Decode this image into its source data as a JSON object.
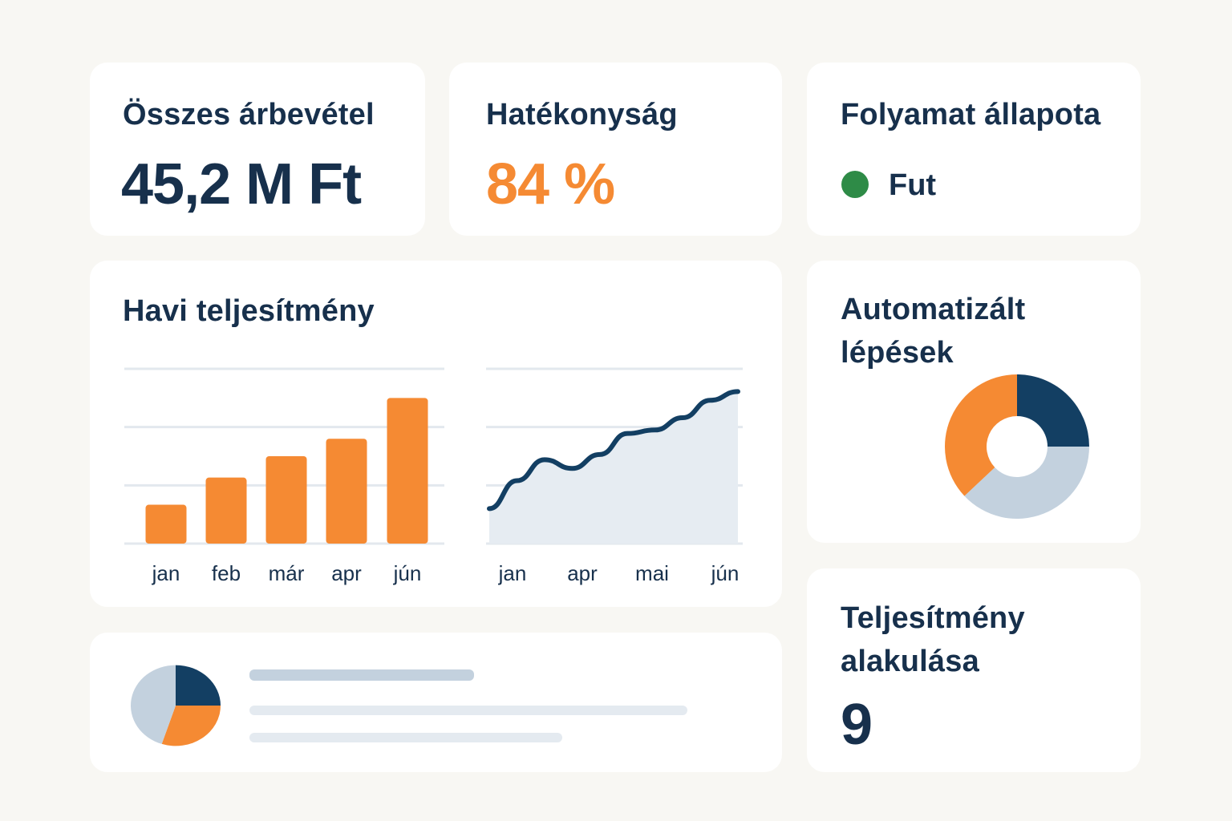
{
  "colors": {
    "navy": "#133f63",
    "orange": "#f58a33",
    "light_blue": "#c3d1de",
    "area_fill": "#e6ecf2",
    "grid": "#e3e8ee",
    "green": "#2e8b47",
    "text": "#17304c"
  },
  "revenue_card": {
    "title": "Összes árbevétel",
    "value": "45,2 M Ft"
  },
  "efficiency_card": {
    "title": "Hatékonyság",
    "value": "84 %"
  },
  "process_card": {
    "title": "Folyamat állapota",
    "status_label": "Fut",
    "status_color": "#2e8b47"
  },
  "monthly_card": {
    "title": "Havi teljesítmény"
  },
  "automation_card": {
    "title_line1": "Automatizált",
    "title_line2": "lépések"
  },
  "performance_card": {
    "title_line1": "Teljesítmény",
    "title_line2": "alakulása",
    "value": "9"
  },
  "chart_data": [
    {
      "type": "bar",
      "categories": [
        "jan",
        "feb",
        "már",
        "apr",
        "jún"
      ],
      "values": [
        2,
        3.4,
        4.5,
        5.4,
        7.5
      ],
      "ylim": [
        0,
        9
      ],
      "grid": true
    },
    {
      "type": "area",
      "x": [
        "jan",
        "",
        "",
        "apr",
        "",
        "",
        "mai",
        "",
        "",
        "jún"
      ],
      "x_tick_labels": [
        "jan",
        "apr",
        "mai",
        "jún"
      ],
      "values": [
        2,
        3.6,
        4.8,
        4.3,
        5.1,
        6.3,
        6.5,
        7.2,
        8.2,
        8.7
      ],
      "ylim": [
        0,
        10
      ],
      "grid": true
    },
    {
      "type": "pie",
      "donut": true,
      "values": [
        25,
        38,
        37
      ],
      "colors": [
        "#133f63",
        "#c3d1de",
        "#f58a33"
      ]
    },
    {
      "type": "pie",
      "donut": false,
      "values": [
        25,
        30,
        45
      ],
      "colors": [
        "#133f63",
        "#f58a33",
        "#c3d1de"
      ]
    }
  ]
}
